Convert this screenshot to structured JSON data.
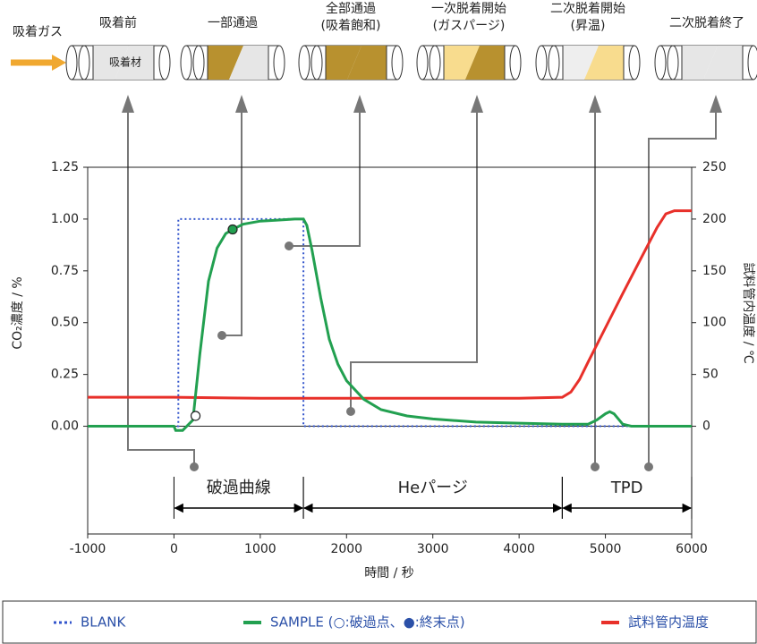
{
  "chart_data": {
    "type": "line",
    "gas_label": "吸着ガス",
    "adsorbent_label": "吸着材",
    "stages": [
      {
        "label": [
          "吸着前"
        ]
      },
      {
        "label": [
          "一部通過"
        ]
      },
      {
        "label": [
          "全部通過",
          "(吸着飽和)"
        ]
      },
      {
        "label": [
          "一次脱着開始",
          "(ガスパージ)"
        ]
      },
      {
        "label": [
          "二次脱着開始",
          "(昇温)"
        ]
      },
      {
        "label": [
          "二次脱着終了"
        ]
      }
    ],
    "x_label": "時間 / 秒",
    "y_label": "CO₂濃度 / %",
    "y2_label": "試料管内温度 / ℃",
    "xlim": [
      -1000,
      6000
    ],
    "xticks": [
      -1000,
      0,
      1000,
      2000,
      3000,
      4000,
      5000,
      6000
    ],
    "ylim": [
      -0.52,
      1.25
    ],
    "yticks": [
      {
        "value": 0,
        "label": "0.00"
      },
      {
        "value": 0.25,
        "label": "0.25"
      },
      {
        "value": 0.5,
        "label": "0.50"
      },
      {
        "value": 0.75,
        "label": "0.75"
      },
      {
        "value": 1,
        "label": "1.00"
      },
      {
        "value": 1.25,
        "label": "1.25"
      }
    ],
    "y2lim": [
      -104,
      250
    ],
    "y2ticks": [
      0,
      50,
      100,
      150,
      200,
      250
    ],
    "series": [
      {
        "name": "BLANK",
        "color": "#3355cc",
        "dash": "dotted",
        "x": [
          -1000,
          50,
          50,
          1500,
          1500,
          6000
        ],
        "values": [
          0,
          0,
          1,
          1,
          0,
          0
        ]
      },
      {
        "name": "SAMPLE (○:破過点、●:終末点)",
        "color": "#22a050",
        "dash": "solid",
        "x": [
          -1000,
          0,
          20,
          100,
          220,
          300,
          400,
          500,
          600,
          680,
          800,
          1000,
          1200,
          1400,
          1500,
          1540,
          1600,
          1700,
          1800,
          1900,
          2000,
          2200,
          2400,
          2700,
          3000,
          3500,
          4000,
          4500,
          4800,
          4900,
          5000,
          5050,
          5100,
          5200,
          5300,
          6000
        ],
        "values": [
          0,
          0,
          -0.02,
          -0.02,
          0.03,
          0.35,
          0.7,
          0.86,
          0.93,
          0.95,
          0.975,
          0.99,
          0.995,
          1.0,
          1.0,
          0.97,
          0.85,
          0.62,
          0.42,
          0.3,
          0.22,
          0.13,
          0.08,
          0.05,
          0.035,
          0.02,
          0.015,
          0.01,
          0.01,
          0.03,
          0.06,
          0.07,
          0.06,
          0.01,
          0,
          0
        ]
      },
      {
        "name": "試料管内温度",
        "color": "#e8302a",
        "dash": "solid",
        "axis": "y2",
        "x": [
          -1000,
          0,
          1000,
          2000,
          3000,
          4000,
          4500,
          4600,
          4700,
          4800,
          5000,
          5200,
          5400,
          5600,
          5700,
          5800,
          6000
        ],
        "values": [
          28,
          28,
          27,
          27,
          27,
          27,
          28,
          33,
          45,
          62,
          95,
          128,
          160,
          192,
          205,
          208,
          208
        ]
      }
    ],
    "breakthrough_point": {
      "x": 250,
      "y": 0.05
    },
    "end_point": {
      "x": 680,
      "y": 0.95
    },
    "phases": [
      {
        "label": "破過曲線",
        "start": 0,
        "end": 1500
      },
      {
        "label": "Heパージ",
        "start": 1500,
        "end": 4500
      },
      {
        "label": "TPD",
        "start": 4500,
        "end": 6000
      }
    ]
  }
}
